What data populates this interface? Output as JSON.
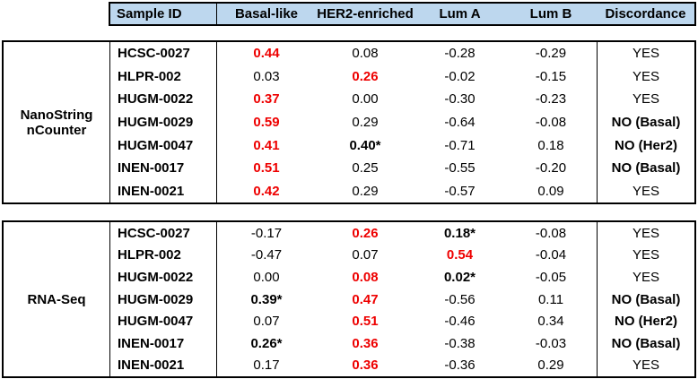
{
  "colors": {
    "header_bg": "#BDD7EE",
    "highlight_red": "#EE0000",
    "border": "#000000"
  },
  "header": {
    "columns": [
      "Sample ID",
      "Basal-like",
      "HER2-enriched",
      "Lum A",
      "Lum B",
      "Discordance"
    ]
  },
  "sections": [
    {
      "method": "NanoString nCounter",
      "rows": [
        {
          "sample": "HCSC-0027",
          "values": [
            {
              "text": "0.44",
              "style": "red"
            },
            {
              "text": "0.08",
              "style": "plain"
            },
            {
              "text": "-0.28",
              "style": "plain"
            },
            {
              "text": "-0.29",
              "style": "plain"
            }
          ],
          "discordance": {
            "text": "YES",
            "style": "plain"
          }
        },
        {
          "sample": "HLPR-002",
          "values": [
            {
              "text": "0.03",
              "style": "plain"
            },
            {
              "text": "0.26",
              "style": "red"
            },
            {
              "text": "-0.02",
              "style": "plain"
            },
            {
              "text": "-0.15",
              "style": "plain"
            }
          ],
          "discordance": {
            "text": "YES",
            "style": "plain"
          }
        },
        {
          "sample": "HUGM-0022",
          "values": [
            {
              "text": "0.37",
              "style": "red"
            },
            {
              "text": "0.00",
              "style": "plain"
            },
            {
              "text": "-0.30",
              "style": "plain"
            },
            {
              "text": "-0.23",
              "style": "plain"
            }
          ],
          "discordance": {
            "text": "YES",
            "style": "plain"
          }
        },
        {
          "sample": "HUGM-0029",
          "values": [
            {
              "text": "0.59",
              "style": "red"
            },
            {
              "text": "0.29",
              "style": "plain"
            },
            {
              "text": "-0.64",
              "style": "plain"
            },
            {
              "text": "-0.08",
              "style": "plain"
            }
          ],
          "discordance": {
            "text": "NO (Basal)",
            "style": "bold"
          }
        },
        {
          "sample": "HUGM-0047",
          "values": [
            {
              "text": "0.41",
              "style": "red"
            },
            {
              "text": "0.40*",
              "style": "bold"
            },
            {
              "text": "-0.71",
              "style": "plain"
            },
            {
              "text": "0.18",
              "style": "plain"
            }
          ],
          "discordance": {
            "text": "NO (Her2)",
            "style": "bold"
          }
        },
        {
          "sample": "INEN-0017",
          "values": [
            {
              "text": "0.51",
              "style": "red"
            },
            {
              "text": "0.25",
              "style": "plain"
            },
            {
              "text": "-0.55",
              "style": "plain"
            },
            {
              "text": "-0.20",
              "style": "plain"
            }
          ],
          "discordance": {
            "text": "NO (Basal)",
            "style": "bold"
          }
        },
        {
          "sample": "INEN-0021",
          "values": [
            {
              "text": "0.42",
              "style": "red"
            },
            {
              "text": "0.29",
              "style": "plain"
            },
            {
              "text": "-0.57",
              "style": "plain"
            },
            {
              "text": "0.09",
              "style": "plain"
            }
          ],
          "discordance": {
            "text": "YES",
            "style": "plain"
          }
        }
      ]
    },
    {
      "method": "RNA-Seq",
      "rows": [
        {
          "sample": "HCSC-0027",
          "values": [
            {
              "text": "-0.17",
              "style": "plain"
            },
            {
              "text": "0.26",
              "style": "red"
            },
            {
              "text": "0.18*",
              "style": "bold"
            },
            {
              "text": "-0.08",
              "style": "plain"
            }
          ],
          "discordance": {
            "text": "YES",
            "style": "plain"
          }
        },
        {
          "sample": "HLPR-002",
          "values": [
            {
              "text": "-0.47",
              "style": "plain"
            },
            {
              "text": "0.07",
              "style": "plain"
            },
            {
              "text": "0.54",
              "style": "red"
            },
            {
              "text": "-0.04",
              "style": "plain"
            }
          ],
          "discordance": {
            "text": "YES",
            "style": "plain"
          }
        },
        {
          "sample": "HUGM-0022",
          "values": [
            {
              "text": "0.00",
              "style": "plain"
            },
            {
              "text": "0.08",
              "style": "red"
            },
            {
              "text": "0.02*",
              "style": "bold"
            },
            {
              "text": "-0.05",
              "style": "plain"
            }
          ],
          "discordance": {
            "text": "YES",
            "style": "plain"
          }
        },
        {
          "sample": "HUGM-0029",
          "values": [
            {
              "text": "0.39*",
              "style": "bold"
            },
            {
              "text": "0.47",
              "style": "red"
            },
            {
              "text": "-0.56",
              "style": "plain"
            },
            {
              "text": "0.11",
              "style": "plain"
            }
          ],
          "discordance": {
            "text": "NO (Basal)",
            "style": "bold"
          }
        },
        {
          "sample": "HUGM-0047",
          "values": [
            {
              "text": "0.07",
              "style": "plain"
            },
            {
              "text": "0.51",
              "style": "red"
            },
            {
              "text": "-0.46",
              "style": "plain"
            },
            {
              "text": "0.34",
              "style": "plain"
            }
          ],
          "discordance": {
            "text": "NO (Her2)",
            "style": "bold"
          }
        },
        {
          "sample": "INEN-0017",
          "values": [
            {
              "text": "0.26*",
              "style": "bold"
            },
            {
              "text": "0.36",
              "style": "red"
            },
            {
              "text": "-0.38",
              "style": "plain"
            },
            {
              "text": "-0.03",
              "style": "plain"
            }
          ],
          "discordance": {
            "text": "NO (Basal)",
            "style": "bold"
          }
        },
        {
          "sample": "INEN-0021",
          "values": [
            {
              "text": "0.17",
              "style": "plain"
            },
            {
              "text": "0.36",
              "style": "red"
            },
            {
              "text": "-0.36",
              "style": "plain"
            },
            {
              "text": "0.29",
              "style": "plain"
            }
          ],
          "discordance": {
            "text": "YES",
            "style": "plain"
          }
        }
      ]
    }
  ]
}
